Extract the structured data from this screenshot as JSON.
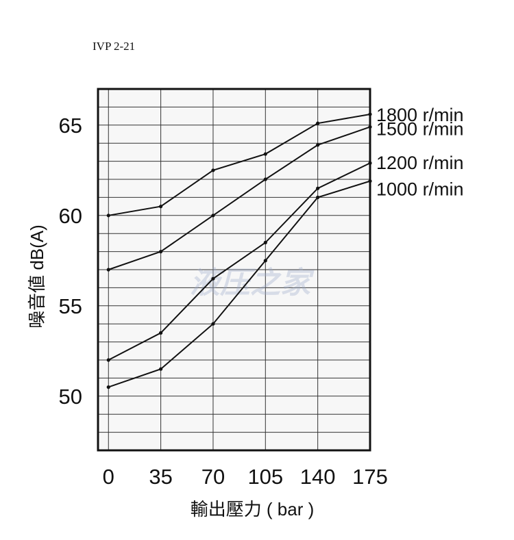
{
  "header": {
    "code": "IVP 2-21"
  },
  "watermark": {
    "text": "液压之家"
  },
  "chart_data": {
    "type": "line",
    "title": "",
    "xlabel": "輸出壓力 ( bar )",
    "ylabel": "噪音値 dB(A)",
    "xlim": [
      -7,
      175
    ],
    "ylim": [
      47,
      67
    ],
    "xticks": [
      0,
      35,
      70,
      105,
      140,
      175
    ],
    "xtick_labels": [
      "0",
      "35",
      "70",
      "105",
      "140",
      "175"
    ],
    "yticks": [
      50,
      55,
      60,
      65
    ],
    "ytick_labels": [
      "50",
      "55",
      "60",
      "65"
    ],
    "grid": true,
    "legend": "right",
    "series": [
      {
        "name": "1800 r/min",
        "x": [
          0,
          35,
          70,
          105,
          140,
          175
        ],
        "y": [
          60.0,
          60.5,
          62.5,
          63.4,
          65.1,
          65.6
        ]
      },
      {
        "name": "1500 r/min",
        "x": [
          0,
          35,
          70,
          105,
          140,
          175
        ],
        "y": [
          57.0,
          58.0,
          60.0,
          62.0,
          63.9,
          64.9
        ]
      },
      {
        "name": "1200 r/min",
        "x": [
          0,
          35,
          70,
          105,
          140,
          175
        ],
        "y": [
          52.0,
          53.5,
          56.5,
          58.5,
          61.5,
          62.9
        ]
      },
      {
        "name": "1000 r/min",
        "x": [
          0,
          35,
          70,
          105,
          140,
          175
        ],
        "y": [
          50.5,
          51.5,
          54.0,
          57.5,
          61.0,
          61.9
        ]
      }
    ]
  }
}
